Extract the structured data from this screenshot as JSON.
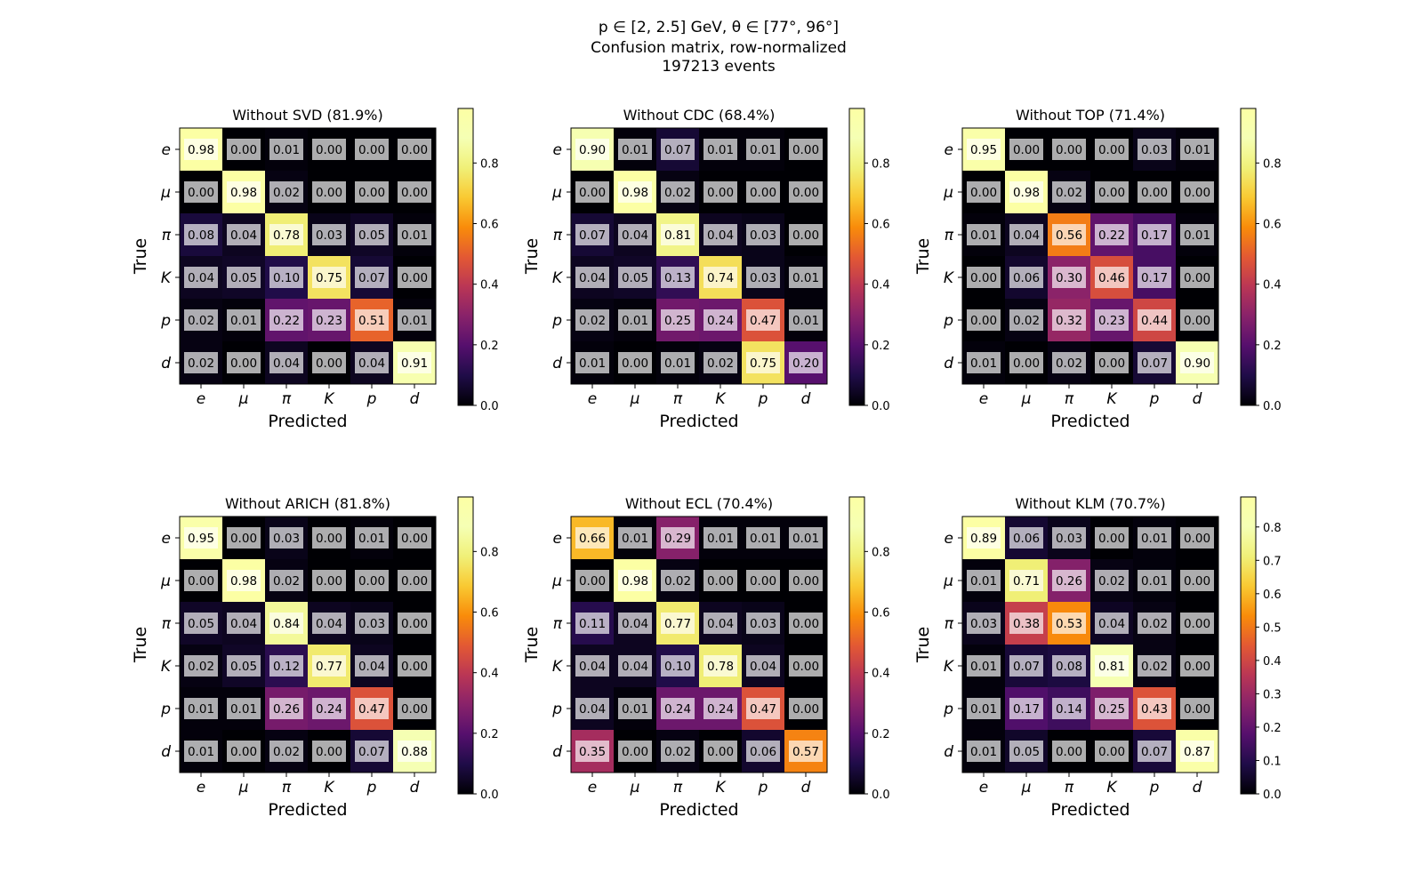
{
  "figure": {
    "title_lines": [
      "p ∈ [2, 2.5] GeV, θ ∈ [77°, 96°]",
      "Confusion matrix, row-normalized",
      "197213 events"
    ]
  },
  "chart_data": [
    {
      "type": "heatmap",
      "title": "Without SVD (81.9%)",
      "xlabel": "Predicted",
      "ylabel": "True",
      "x_categories": [
        "e",
        "μ",
        "π",
        "K",
        "p",
        "d"
      ],
      "y_categories": [
        "e",
        "μ",
        "π",
        "K",
        "p",
        "d"
      ],
      "values": [
        [
          0.98,
          0.0,
          0.01,
          0.0,
          0.0,
          0.0
        ],
        [
          0.0,
          0.98,
          0.02,
          0.0,
          0.0,
          0.0
        ],
        [
          0.08,
          0.04,
          0.78,
          0.03,
          0.05,
          0.01
        ],
        [
          0.04,
          0.05,
          0.1,
          0.75,
          0.07,
          0.0
        ],
        [
          0.02,
          0.01,
          0.22,
          0.23,
          0.51,
          0.01
        ],
        [
          0.02,
          0.0,
          0.04,
          0.0,
          0.04,
          0.91
        ]
      ],
      "colorbar": {
        "colormap": "inferno",
        "range": [
          0,
          0.98
        ],
        "ticks": [
          "0.0",
          "0.2",
          "0.4",
          "0.6",
          "0.8"
        ],
        "tick_values": [
          0,
          0.2,
          0.4,
          0.6,
          0.8
        ]
      }
    },
    {
      "type": "heatmap",
      "title": "Without CDC (68.4%)",
      "xlabel": "Predicted",
      "ylabel": "True",
      "x_categories": [
        "e",
        "μ",
        "π",
        "K",
        "p",
        "d"
      ],
      "y_categories": [
        "e",
        "μ",
        "π",
        "K",
        "p",
        "d"
      ],
      "values": [
        [
          0.9,
          0.01,
          0.07,
          0.01,
          0.01,
          0.0
        ],
        [
          0.0,
          0.98,
          0.02,
          0.0,
          0.0,
          0.0
        ],
        [
          0.07,
          0.04,
          0.81,
          0.04,
          0.03,
          0.0
        ],
        [
          0.04,
          0.05,
          0.13,
          0.74,
          0.03,
          0.01
        ],
        [
          0.02,
          0.01,
          0.25,
          0.24,
          0.47,
          0.01
        ],
        [
          0.01,
          0.0,
          0.01,
          0.02,
          0.75,
          0.2
        ]
      ],
      "colorbar": {
        "colormap": "inferno",
        "range": [
          0,
          0.98
        ],
        "ticks": [
          "0.0",
          "0.2",
          "0.4",
          "0.6",
          "0.8"
        ],
        "tick_values": [
          0,
          0.2,
          0.4,
          0.6,
          0.8
        ]
      }
    },
    {
      "type": "heatmap",
      "title": "Without TOP (71.4%)",
      "xlabel": "Predicted",
      "ylabel": "True",
      "x_categories": [
        "e",
        "μ",
        "π",
        "K",
        "p",
        "d"
      ],
      "y_categories": [
        "e",
        "μ",
        "π",
        "K",
        "p",
        "d"
      ],
      "values": [
        [
          0.95,
          0.0,
          0.0,
          0.0,
          0.03,
          0.01
        ],
        [
          0.0,
          0.98,
          0.02,
          0.0,
          0.0,
          0.0
        ],
        [
          0.01,
          0.04,
          0.56,
          0.22,
          0.17,
          0.01
        ],
        [
          0.0,
          0.06,
          0.3,
          0.46,
          0.17,
          0.0
        ],
        [
          0.0,
          0.02,
          0.32,
          0.23,
          0.44,
          0.0
        ],
        [
          0.01,
          0.0,
          0.02,
          0.0,
          0.07,
          0.9
        ]
      ],
      "colorbar": {
        "colormap": "inferno",
        "range": [
          0,
          0.98
        ],
        "ticks": [
          "0.0",
          "0.2",
          "0.4",
          "0.6",
          "0.8"
        ],
        "tick_values": [
          0,
          0.2,
          0.4,
          0.6,
          0.8
        ]
      }
    },
    {
      "type": "heatmap",
      "title": "Without ARICH (81.8%)",
      "xlabel": "Predicted",
      "ylabel": "True",
      "x_categories": [
        "e",
        "μ",
        "π",
        "K",
        "p",
        "d"
      ],
      "y_categories": [
        "e",
        "μ",
        "π",
        "K",
        "p",
        "d"
      ],
      "values": [
        [
          0.95,
          0.0,
          0.03,
          0.0,
          0.01,
          0.0
        ],
        [
          0.0,
          0.98,
          0.02,
          0.0,
          0.0,
          0.0
        ],
        [
          0.05,
          0.04,
          0.84,
          0.04,
          0.03,
          0.0
        ],
        [
          0.02,
          0.05,
          0.12,
          0.77,
          0.04,
          0.0
        ],
        [
          0.01,
          0.01,
          0.26,
          0.24,
          0.47,
          0.0
        ],
        [
          0.01,
          0.0,
          0.02,
          0.0,
          0.07,
          0.88
        ]
      ],
      "colorbar": {
        "colormap": "inferno",
        "range": [
          0,
          0.98
        ],
        "ticks": [
          "0.0",
          "0.2",
          "0.4",
          "0.6",
          "0.8"
        ],
        "tick_values": [
          0,
          0.2,
          0.4,
          0.6,
          0.8
        ]
      }
    },
    {
      "type": "heatmap",
      "title": "Without ECL (70.4%)",
      "xlabel": "Predicted",
      "ylabel": "True",
      "x_categories": [
        "e",
        "μ",
        "π",
        "K",
        "p",
        "d"
      ],
      "y_categories": [
        "e",
        "μ",
        "π",
        "K",
        "p",
        "d"
      ],
      "values": [
        [
          0.66,
          0.01,
          0.29,
          0.01,
          0.01,
          0.01
        ],
        [
          0.0,
          0.98,
          0.02,
          0.0,
          0.0,
          0.0
        ],
        [
          0.11,
          0.04,
          0.77,
          0.04,
          0.03,
          0.0
        ],
        [
          0.04,
          0.04,
          0.1,
          0.78,
          0.04,
          0.0
        ],
        [
          0.04,
          0.01,
          0.24,
          0.24,
          0.47,
          0.0
        ],
        [
          0.35,
          0.0,
          0.02,
          0.0,
          0.06,
          0.57
        ]
      ],
      "colorbar": {
        "colormap": "inferno",
        "range": [
          0,
          0.98
        ],
        "ticks": [
          "0.0",
          "0.2",
          "0.4",
          "0.6",
          "0.8"
        ],
        "tick_values": [
          0,
          0.2,
          0.4,
          0.6,
          0.8
        ]
      }
    },
    {
      "type": "heatmap",
      "title": "Without KLM (70.7%)",
      "xlabel": "Predicted",
      "ylabel": "True",
      "x_categories": [
        "e",
        "μ",
        "π",
        "K",
        "p",
        "d"
      ],
      "y_categories": [
        "e",
        "μ",
        "π",
        "K",
        "p",
        "d"
      ],
      "values": [
        [
          0.89,
          0.06,
          0.03,
          0.0,
          0.01,
          0.0
        ],
        [
          0.01,
          0.71,
          0.26,
          0.02,
          0.01,
          0.0
        ],
        [
          0.03,
          0.38,
          0.53,
          0.04,
          0.02,
          0.0
        ],
        [
          0.01,
          0.07,
          0.08,
          0.81,
          0.02,
          0.0
        ],
        [
          0.01,
          0.17,
          0.14,
          0.25,
          0.43,
          0.0
        ],
        [
          0.01,
          0.05,
          0.0,
          0.0,
          0.07,
          0.87
        ]
      ],
      "colorbar": {
        "colormap": "inferno",
        "range": [
          0,
          0.89
        ],
        "ticks": [
          "0.0",
          "0.1",
          "0.2",
          "0.3",
          "0.4",
          "0.5",
          "0.6",
          "0.7",
          "0.8"
        ],
        "tick_values": [
          0,
          0.1,
          0.2,
          0.3,
          0.4,
          0.5,
          0.6,
          0.7,
          0.8
        ]
      }
    }
  ]
}
